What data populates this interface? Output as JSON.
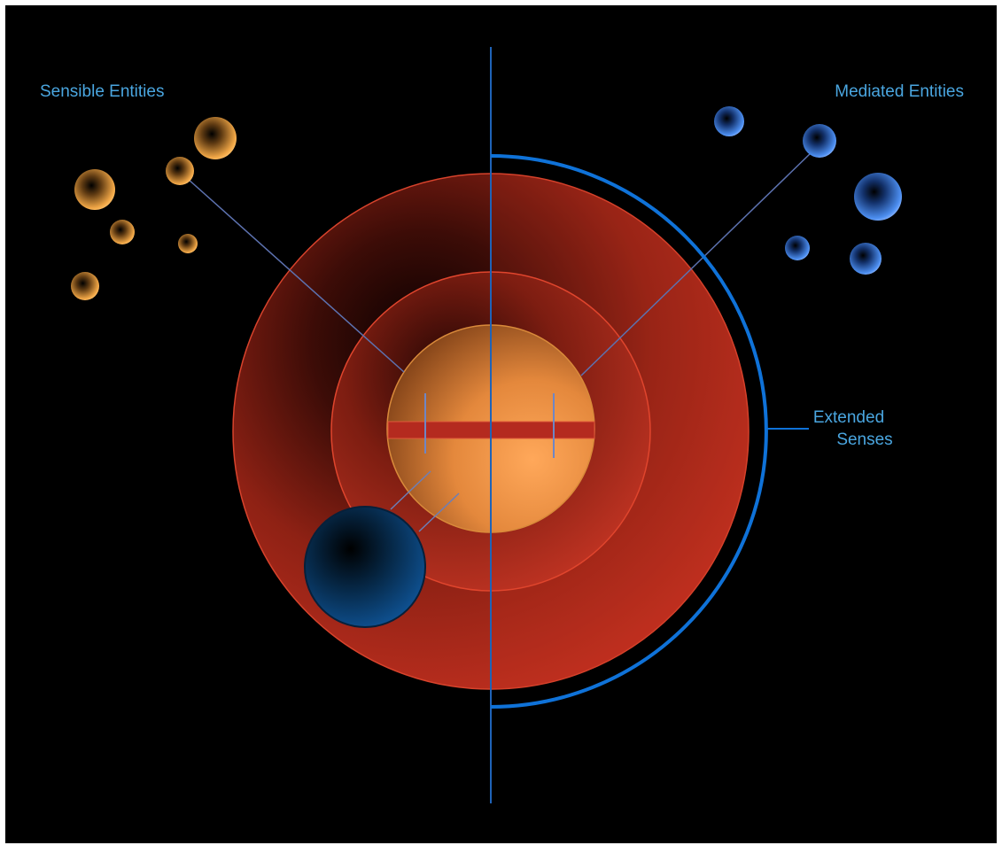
{
  "labels": {
    "sensible_entities": "Sensible Entities",
    "mediated_entities": "Mediated Entities",
    "extended_senses_line1": "Extended",
    "extended_senses_line2": "Senses"
  },
  "colors": {
    "background": "#000000",
    "label_text": "#4aa6e0",
    "axis_line": "#1f63b8",
    "arc": "#0f72d8",
    "connector": "#6b7fb8",
    "outer_sphere": "#b52b1c",
    "core_sphere": "#f39a4a",
    "sensible_bubble": "#f3a844",
    "mediated_bubble": "#4e8ff0",
    "blue_sphere": "#0d4f94"
  },
  "icons": {
    "sensible_entity": "orange-sphere-icon",
    "mediated_entity": "blue-sphere-icon"
  }
}
